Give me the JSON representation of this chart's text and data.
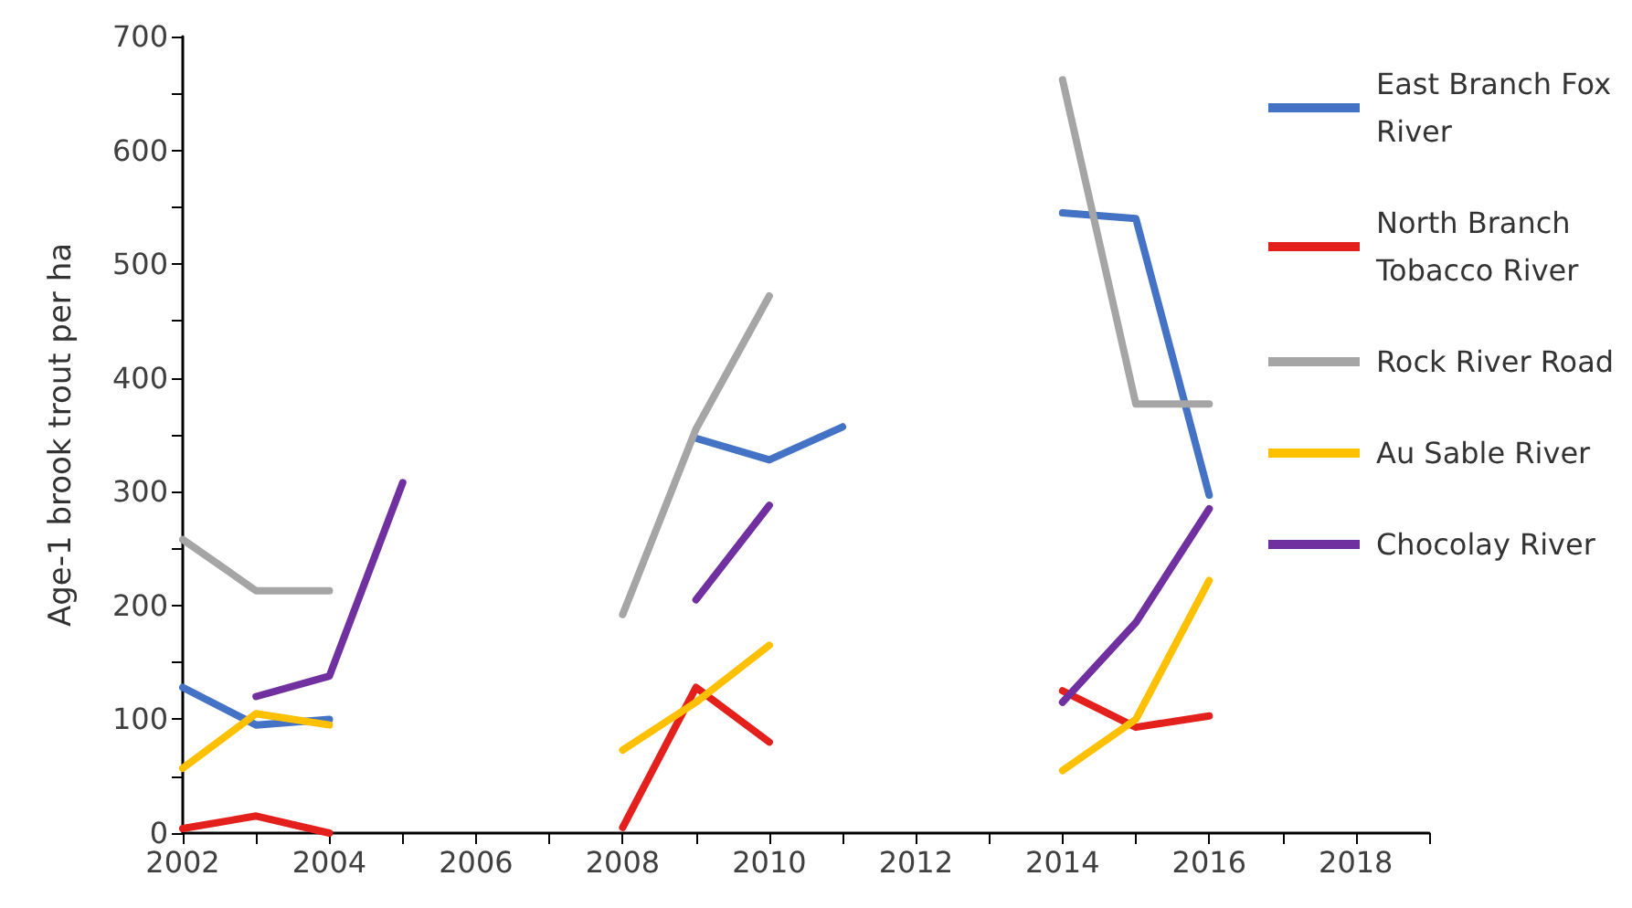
{
  "chart_data": {
    "type": "line",
    "ylabel": "Age-1 brook trout per ha",
    "x": [
      2002,
      2003,
      2004,
      2005,
      2006,
      2007,
      2008,
      2009,
      2010,
      2011,
      2012,
      2013,
      2014,
      2015,
      2016
    ],
    "series": [
      {
        "name": "East Branch Fox River",
        "color": "#4472c4",
        "values": [
          128,
          95,
          100,
          null,
          null,
          null,
          null,
          347,
          328,
          357,
          null,
          null,
          545,
          540,
          297
        ]
      },
      {
        "name": "North Branch Tobacco River",
        "color": "#e3201c",
        "values": [
          4,
          15,
          0,
          null,
          null,
          null,
          5,
          128,
          80,
          null,
          null,
          null,
          125,
          93,
          103
        ]
      },
      {
        "name": "Rock River Road",
        "color": "#a5a5a5",
        "values": [
          258,
          213,
          213,
          null,
          null,
          null,
          192,
          355,
          472,
          null,
          null,
          null,
          662,
          377,
          377
        ]
      },
      {
        "name": "Au Sable River",
        "color": "#ffc000",
        "values": [
          57,
          105,
          95,
          null,
          null,
          null,
          73,
          115,
          165,
          null,
          null,
          null,
          55,
          100,
          222
        ]
      },
      {
        "name": "Chocolay River",
        "color": "#7030a0",
        "values": [
          null,
          120,
          138,
          308,
          null,
          null,
          null,
          205,
          288,
          null,
          null,
          null,
          115,
          185,
          285
        ]
      }
    ],
    "xlim": [
      2002,
      2019
    ],
    "xticks": [
      2002,
      {
        "value": 2003,
        "label": null
      },
      2004,
      {
        "value": 2005,
        "label": null
      },
      2006,
      {
        "value": 2007,
        "label": null
      },
      2008,
      {
        "value": 2009,
        "label": null
      },
      2010,
      {
        "value": 2011,
        "label": null
      },
      2012,
      {
        "value": 2013,
        "label": null
      },
      2014,
      {
        "value": 2015,
        "label": null
      },
      2016,
      {
        "value": 2017,
        "label": null
      },
      2018,
      {
        "value": 2019,
        "label": null
      }
    ],
    "ylim": [
      0,
      700
    ],
    "yticks": [
      0,
      {
        "value": 50,
        "label": null
      },
      100,
      {
        "value": 150,
        "label": null
      },
      200,
      {
        "value": 250,
        "label": null
      },
      300,
      {
        "value": 350,
        "label": null
      },
      400,
      {
        "value": 450,
        "label": null
      },
      500,
      {
        "value": 550,
        "label": null
      },
      600,
      {
        "value": 650,
        "label": null
      },
      700
    ],
    "grid": false,
    "legend": "right",
    "marker": "none",
    "line_style": "solid"
  }
}
